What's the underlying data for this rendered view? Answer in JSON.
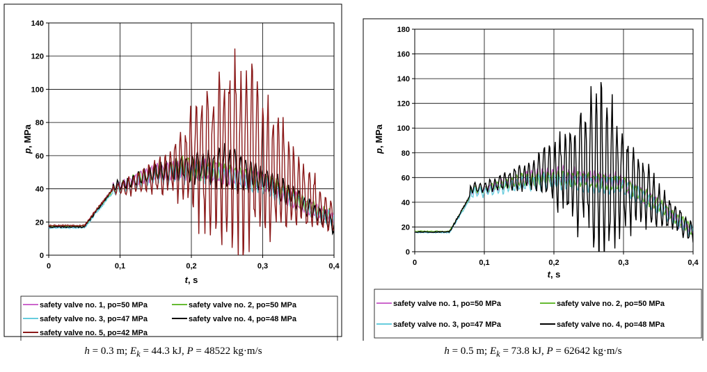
{
  "chart_data": [
    {
      "type": "line",
      "panel": "left",
      "xlabel_var": "t",
      "xlabel_unit": ", s",
      "ylabel_var": "p",
      "ylabel_unit": ", MPa",
      "xlim": [
        0,
        0.4
      ],
      "ylim": [
        0,
        140
      ],
      "xticks": [
        "0",
        "0,1",
        "0,2",
        "0,3",
        "0,4"
      ],
      "yticks": [
        "0",
        "20",
        "40",
        "60",
        "80",
        "100",
        "120",
        "140"
      ],
      "grid": true,
      "legend_position": "bottom",
      "series": [
        {
          "name": "safety valve no. 1, po=50 MPa",
          "color": "#cc66cc",
          "baseline": 17,
          "rise_end": 0.09,
          "rise_val": 40,
          "plateau": [
            [
              0.1,
              42
            ],
            [
              0.15,
              50
            ],
            [
              0.2,
              52
            ],
            [
              0.25,
              49
            ],
            [
              0.3,
              44
            ],
            [
              0.35,
              32
            ],
            [
              0.4,
              22
            ]
          ],
          "amp": [
            [
              0.1,
              3
            ],
            [
              0.18,
              6
            ],
            [
              0.3,
              6
            ],
            [
              0.4,
              4
            ]
          ],
          "seed": 11
        },
        {
          "name": "safety valve no. 2, po=50 MPa",
          "color": "#66bb33",
          "baseline": 17.5,
          "rise_end": 0.09,
          "rise_val": 39,
          "plateau": [
            [
              0.1,
              41
            ],
            [
              0.15,
              51
            ],
            [
              0.2,
              53
            ],
            [
              0.25,
              49
            ],
            [
              0.3,
              45
            ],
            [
              0.35,
              33
            ],
            [
              0.4,
              22
            ]
          ],
          "amp": [
            [
              0.1,
              3
            ],
            [
              0.18,
              7
            ],
            [
              0.3,
              6
            ],
            [
              0.4,
              4
            ]
          ],
          "seed": 23
        },
        {
          "name": "safety valve no. 3, po=47 MPa",
          "color": "#66ccdd",
          "baseline": 16.5,
          "rise_end": 0.09,
          "rise_val": 38,
          "plateau": [
            [
              0.1,
              40
            ],
            [
              0.15,
              48
            ],
            [
              0.2,
              50
            ],
            [
              0.25,
              47
            ],
            [
              0.3,
              42
            ],
            [
              0.35,
              31
            ],
            [
              0.4,
              21
            ]
          ],
          "amp": [
            [
              0.1,
              3
            ],
            [
              0.18,
              6
            ],
            [
              0.3,
              6
            ],
            [
              0.4,
              5
            ]
          ],
          "seed": 37
        },
        {
          "name": "safety valve no. 4,  po=48 MPa",
          "color": "#000000",
          "baseline": 17,
          "rise_end": 0.09,
          "rise_val": 40,
          "plateau": [
            [
              0.1,
              42
            ],
            [
              0.15,
              50
            ],
            [
              0.2,
              53
            ],
            [
              0.25,
              52
            ],
            [
              0.3,
              47
            ],
            [
              0.35,
              33
            ],
            [
              0.4,
              18
            ]
          ],
          "amp": [
            [
              0.1,
              3
            ],
            [
              0.18,
              7
            ],
            [
              0.25,
              14
            ],
            [
              0.3,
              8
            ],
            [
              0.4,
              5
            ]
          ],
          "seed": 41
        },
        {
          "name": "safety valve no. 5, po=42 MPa",
          "color": "#8b1a1a",
          "baseline": 18,
          "rise_end": 0.09,
          "rise_val": 40,
          "plateau": [
            [
              0.1,
              40
            ],
            [
              0.15,
              48
            ],
            [
              0.2,
              55
            ],
            [
              0.25,
              62
            ],
            [
              0.3,
              55
            ],
            [
              0.35,
              40
            ],
            [
              0.4,
              22
            ]
          ],
          "amp": [
            [
              0.1,
              4
            ],
            [
              0.17,
              14
            ],
            [
              0.22,
              45
            ],
            [
              0.26,
              65
            ],
            [
              0.3,
              48
            ],
            [
              0.35,
              25
            ],
            [
              0.4,
              10
            ]
          ],
          "seed": 53
        }
      ]
    },
    {
      "type": "line",
      "panel": "right",
      "xlabel_var": "t",
      "xlabel_unit": ", s",
      "ylabel_var": "p",
      "ylabel_unit": ", MPa",
      "xlim": [
        0,
        0.4
      ],
      "ylim": [
        0,
        180
      ],
      "xticks": [
        "0",
        "0,1",
        "0,2",
        "0,3",
        "0,4"
      ],
      "yticks": [
        "0",
        "20",
        "40",
        "60",
        "80",
        "100",
        "120",
        "140",
        "160",
        "180"
      ],
      "grid": true,
      "legend_position": "bottom",
      "series": [
        {
          "name": "safety valve no. 1, po=50 MPa",
          "color": "#cc66cc",
          "baseline": 16,
          "rise_end": 0.08,
          "rise_val": 45,
          "plateau": [
            [
              0.1,
              50
            ],
            [
              0.15,
              58
            ],
            [
              0.2,
              62
            ],
            [
              0.25,
              60
            ],
            [
              0.3,
              56
            ],
            [
              0.35,
              38
            ],
            [
              0.4,
              16
            ]
          ],
          "amp": [
            [
              0.1,
              3
            ],
            [
              0.18,
              7
            ],
            [
              0.3,
              7
            ],
            [
              0.4,
              5
            ]
          ],
          "seed": 61
        },
        {
          "name": "safety valve no. 2,  po=50 MPa",
          "color": "#66bb33",
          "baseline": 16.5,
          "rise_end": 0.08,
          "rise_val": 45,
          "plateau": [
            [
              0.1,
              50
            ],
            [
              0.15,
              58
            ],
            [
              0.2,
              60
            ],
            [
              0.25,
              58
            ],
            [
              0.3,
              55
            ],
            [
              0.35,
              38
            ],
            [
              0.4,
              17
            ]
          ],
          "amp": [
            [
              0.1,
              3
            ],
            [
              0.18,
              6
            ],
            [
              0.3,
              6
            ],
            [
              0.4,
              5
            ]
          ],
          "seed": 73
        },
        {
          "name": "safety valve no. 3, po=47 MPa",
          "color": "#66ccdd",
          "baseline": 15.5,
          "rise_end": 0.08,
          "rise_val": 43,
          "plateau": [
            [
              0.1,
              48
            ],
            [
              0.15,
              55
            ],
            [
              0.2,
              57
            ],
            [
              0.25,
              55
            ],
            [
              0.3,
              52
            ],
            [
              0.35,
              36
            ],
            [
              0.4,
              16
            ]
          ],
          "amp": [
            [
              0.1,
              4
            ],
            [
              0.18,
              7
            ],
            [
              0.3,
              7
            ],
            [
              0.4,
              6
            ]
          ],
          "seed": 89
        },
        {
          "name": "safety valve no. 4,  po=48 MPa",
          "color": "#000000",
          "baseline": 16,
          "rise_end": 0.08,
          "rise_val": 46,
          "plateau": [
            [
              0.1,
              52
            ],
            [
              0.15,
              60
            ],
            [
              0.2,
              64
            ],
            [
              0.25,
              68
            ],
            [
              0.3,
              58
            ],
            [
              0.35,
              38
            ],
            [
              0.4,
              16
            ]
          ],
          "amp": [
            [
              0.1,
              4
            ],
            [
              0.17,
              12
            ],
            [
              0.22,
              40
            ],
            [
              0.27,
              80
            ],
            [
              0.3,
              40
            ],
            [
              0.35,
              18
            ],
            [
              0.4,
              8
            ]
          ],
          "seed": 97
        }
      ]
    }
  ],
  "captions": [
    {
      "h_var": "h",
      "h_text": " = 0.3 m; ",
      "e_var": "E",
      "e_sub": "k",
      "e_text": " = 44.3 kJ, ",
      "p_var": "P",
      "p_text": " = 48522 kg·m/s"
    },
    {
      "h_var": "h",
      "h_text": " = 0.5 m; ",
      "e_var": "E",
      "e_sub": "k",
      "e_text": " = 73.8 kJ, ",
      "p_var": "P",
      "p_text": " = 62642 kg·m/s"
    }
  ]
}
